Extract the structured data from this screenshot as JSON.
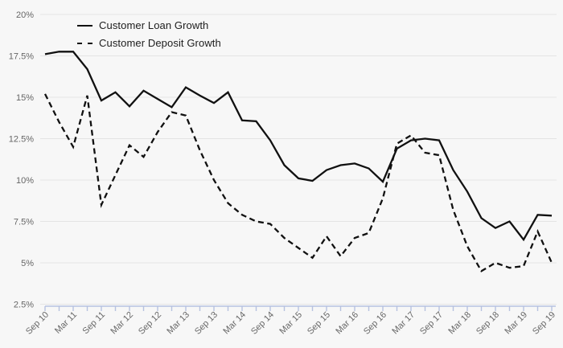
{
  "chart_data": {
    "type": "line",
    "x": [
      "Sep 10",
      "Dec 10",
      "Mar 11",
      "Jun 11",
      "Sep 11",
      "Dec 11",
      "Mar 12",
      "Jun 12",
      "Sep 12",
      "Dec 12",
      "Mar 13",
      "Jun 13",
      "Sep 13",
      "Dec 13",
      "Mar 14",
      "Jun 14",
      "Sep 14",
      "Dec 14",
      "Mar 15",
      "Jun 15",
      "Sep 15",
      "Dec 15",
      "Mar 16",
      "Jun 16",
      "Sep 16",
      "Dec 16",
      "Mar 17",
      "Jun 17",
      "Sep 17",
      "Dec 17",
      "Mar 18",
      "Jun 18",
      "Sep 18",
      "Dec 18",
      "Mar 19",
      "Jun 19",
      "Sep 19"
    ],
    "x_labels_shown": [
      "Sep 10",
      "Mar 11",
      "Sep 11",
      "Mar 12",
      "Sep 12",
      "Mar 13",
      "Sep 13",
      "Mar 14",
      "Sep 14",
      "Mar 15",
      "Sep 15",
      "Mar 16",
      "Sep 16",
      "Mar 17",
      "Sep 17",
      "Mar 18",
      "Sep 18",
      "Mar 19"
    ],
    "x_label_every": 2,
    "series": [
      {
        "name": "Customer Loan Growth",
        "style": "solid",
        "color": "#111111",
        "values": [
          17.6,
          17.75,
          17.75,
          16.7,
          14.8,
          15.3,
          14.45,
          15.4,
          14.9,
          14.4,
          15.6,
          15.1,
          14.65,
          15.3,
          13.6,
          13.55,
          12.4,
          10.9,
          10.1,
          9.95,
          10.6,
          10.9,
          11.0,
          10.7,
          9.9,
          11.9,
          12.4,
          12.5,
          12.4,
          10.6,
          9.3,
          7.7,
          7.1,
          7.5,
          6.4,
          7.9,
          7.85
        ]
      },
      {
        "name": "Customer Deposit Growth",
        "style": "dashed",
        "color": "#111111",
        "values": [
          15.2,
          13.5,
          12.0,
          15.1,
          8.5,
          10.3,
          12.1,
          11.4,
          12.9,
          14.1,
          13.9,
          11.8,
          10.0,
          8.6,
          7.9,
          7.5,
          7.35,
          6.5,
          5.9,
          5.3,
          6.6,
          5.4,
          6.5,
          6.8,
          8.9,
          12.2,
          12.7,
          11.65,
          11.5,
          8.2,
          6.0,
          4.5,
          5.0,
          4.7,
          4.8,
          6.9,
          5.0
        ]
      }
    ],
    "y_ticks": [
      {
        "value": 20,
        "label": "20%"
      },
      {
        "value": 17.5,
        "label": "17.5%"
      },
      {
        "value": 15,
        "label": "15%"
      },
      {
        "value": 12.5,
        "label": "12.5%"
      },
      {
        "value": 10,
        "label": "10%"
      },
      {
        "value": 7.5,
        "label": "7.5%"
      },
      {
        "value": 5,
        "label": "5%"
      },
      {
        "value": 2.5,
        "label": "2.5%"
      }
    ],
    "ylim": [
      2.5,
      20
    ],
    "grid": "horizontal",
    "legend_position": "top-left"
  },
  "legend": {
    "loan_label": "Customer Loan Growth",
    "deposit_label": "Customer Deposit Growth"
  },
  "colors": {
    "background": "#f7f7f7",
    "gridline": "#e4e4e4",
    "axis": "#b6c2e0",
    "line": "#111111",
    "y_label": "#666666",
    "x_label": "#686868"
  }
}
